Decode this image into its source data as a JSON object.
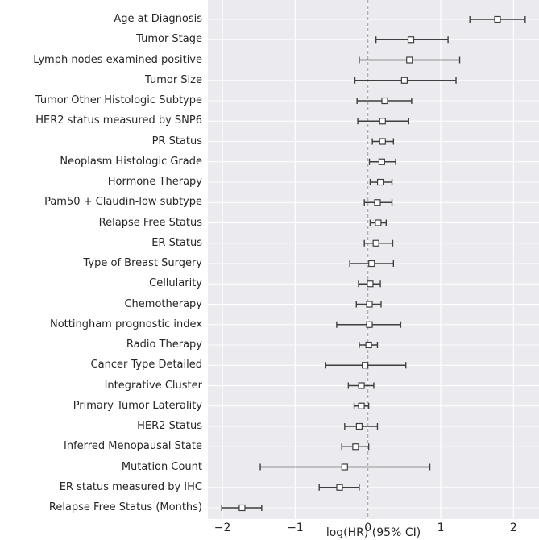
{
  "chart_data": {
    "type": "scatter",
    "subtype": "forest-plot",
    "title": "",
    "xlabel": "log(HR) (95% CI)",
    "ylabel": "",
    "xlim": [
      -2.2,
      2.35
    ],
    "grid": true,
    "legend": false,
    "reference_line_x": 0,
    "marker": "open-square",
    "x_ticks": [
      {
        "value": -2,
        "label": "−2"
      },
      {
        "value": -1,
        "label": "−1"
      },
      {
        "value": 0,
        "label": "0"
      },
      {
        "value": 1,
        "label": "1"
      },
      {
        "value": 2,
        "label": "2"
      }
    ],
    "rows": [
      {
        "label": "Age at Diagnosis",
        "estimate": 1.78,
        "ci_low": 1.4,
        "ci_high": 2.16
      },
      {
        "label": "Tumor Stage",
        "estimate": 0.59,
        "ci_low": 0.11,
        "ci_high": 1.1
      },
      {
        "label": "Lymph nodes examined positive",
        "estimate": 0.57,
        "ci_low": -0.12,
        "ci_high": 1.26
      },
      {
        "label": "Tumor Size",
        "estimate": 0.5,
        "ci_low": -0.18,
        "ci_high": 1.21
      },
      {
        "label": "Tumor Other Histologic Subtype",
        "estimate": 0.23,
        "ci_low": -0.15,
        "ci_high": 0.6
      },
      {
        "label": "HER2 status measured by SNP6",
        "estimate": 0.2,
        "ci_low": -0.14,
        "ci_high": 0.56
      },
      {
        "label": "PR Status",
        "estimate": 0.2,
        "ci_low": 0.06,
        "ci_high": 0.35
      },
      {
        "label": "Neoplasm Histologic Grade",
        "estimate": 0.19,
        "ci_low": 0.02,
        "ci_high": 0.38
      },
      {
        "label": "Hormone Therapy",
        "estimate": 0.17,
        "ci_low": 0.03,
        "ci_high": 0.33
      },
      {
        "label": "Pam50 + Claudin-low subtype",
        "estimate": 0.13,
        "ci_low": -0.05,
        "ci_high": 0.33
      },
      {
        "label": "Relapse Free Status",
        "estimate": 0.14,
        "ci_low": 0.03,
        "ci_high": 0.25
      },
      {
        "label": "ER Status",
        "estimate": 0.11,
        "ci_low": -0.05,
        "ci_high": 0.34
      },
      {
        "label": "Type of Breast Surgery",
        "estimate": 0.05,
        "ci_low": -0.25,
        "ci_high": 0.35
      },
      {
        "label": "Cellularity",
        "estimate": 0.03,
        "ci_low": -0.13,
        "ci_high": 0.17
      },
      {
        "label": "Chemotherapy",
        "estimate": 0.02,
        "ci_low": -0.16,
        "ci_high": 0.18
      },
      {
        "label": "Nottingham prognostic index",
        "estimate": 0.02,
        "ci_low": -0.43,
        "ci_high": 0.45
      },
      {
        "label": "Radio Therapy",
        "estimate": 0.01,
        "ci_low": -0.12,
        "ci_high": 0.13
      },
      {
        "label": "Cancer Type Detailed",
        "estimate": -0.04,
        "ci_low": -0.58,
        "ci_high": 0.52
      },
      {
        "label": "Integrative Cluster",
        "estimate": -0.09,
        "ci_low": -0.27,
        "ci_high": 0.08
      },
      {
        "label": "Primary Tumor Laterality",
        "estimate": -0.09,
        "ci_low": -0.19,
        "ci_high": 0.01
      },
      {
        "label": "HER2 Status",
        "estimate": -0.12,
        "ci_low": -0.32,
        "ci_high": 0.13
      },
      {
        "label": "Inferred Menopausal State",
        "estimate": -0.17,
        "ci_low": -0.36,
        "ci_high": 0.01
      },
      {
        "label": "Mutation Count",
        "estimate": -0.32,
        "ci_low": -1.48,
        "ci_high": 0.85
      },
      {
        "label": "ER status measured by IHC",
        "estimate": -0.39,
        "ci_low": -0.67,
        "ci_high": -0.12
      },
      {
        "label": "Relapse Free Status (Months)",
        "estimate": -1.73,
        "ci_low": -2.01,
        "ci_high": -1.46
      }
    ]
  },
  "colors": {
    "plot_background": "#eaeaef",
    "grid_line": "#ffffff",
    "error_bar": "#3f3f3f",
    "marker_fill": "#ffffff",
    "reference_line": "#999999",
    "text": "#262626"
  }
}
